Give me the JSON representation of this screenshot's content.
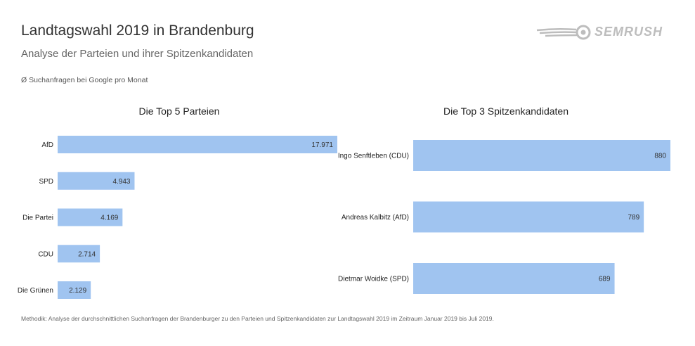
{
  "title": "Landtagswahl 2019 in Brandenburg",
  "subtitle": "Analyse der Parteien und ihrer Spitzenkandidaten",
  "note": "Ø Suchanfragen bei Google pro Monat",
  "footer": "Methodik: Analyse der durchschnittlichen Suchanfragen der Brandenburger zu den Parteien und Spitzenkandidaten zur Landtagswahl 2019 im Zeitraum Januar 2019 bis Juli 2019.",
  "logo": {
    "text": "SEMRUSH",
    "icon": "semrush-fireball-icon"
  },
  "colors": {
    "bar": "#a0c4f0",
    "logo": "#bdbdbd"
  },
  "chart_data": [
    {
      "type": "bar",
      "orientation": "horizontal",
      "title": "Die Top 5 Parteien",
      "categories": [
        "AfD",
        "SPD",
        "Die Partei",
        "CDU",
        "Die Grünen"
      ],
      "values": [
        17971,
        4943,
        4169,
        2714,
        2129
      ],
      "value_labels": [
        "17.971",
        "4.943",
        "4.169",
        "2.714",
        "2.129"
      ],
      "xlim": [
        0,
        17971
      ],
      "grid": false
    },
    {
      "type": "bar",
      "orientation": "horizontal",
      "title": "Die Top 3 Spitzenkandidaten",
      "categories": [
        "Ingo Senftleben (CDU)",
        "Andreas Kalbitz (AfD)",
        "Dietmar Woidke (SPD)"
      ],
      "values": [
        880,
        789,
        689
      ],
      "value_labels": [
        "880",
        "789",
        "689"
      ],
      "xlim": [
        0,
        880
      ],
      "grid": false
    }
  ]
}
